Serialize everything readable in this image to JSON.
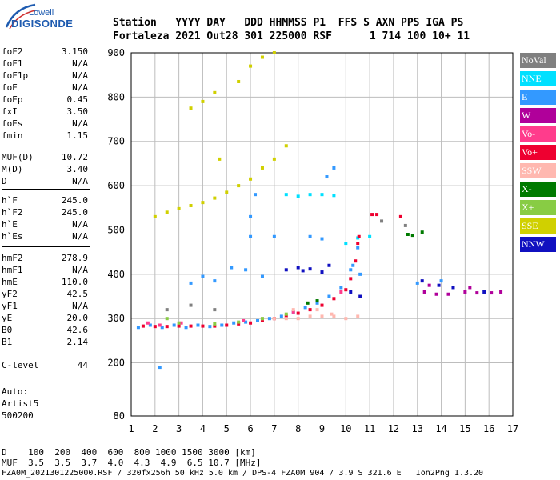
{
  "logo": {
    "top": "Lowell",
    "main": "DIGISONDE"
  },
  "header": {
    "row1": "Station   YYYY DAY   DDD HHMMSS P1  FFS S AXN PPS IGA PS",
    "row2": "Fortaleza 2021 Out28 301 225000 RSF      1 714 100 10+ 11"
  },
  "params": [
    {
      "label": "foF2",
      "value": "3.150"
    },
    {
      "label": "foF1",
      "value": "N/A"
    },
    {
      "label": "foF1p",
      "value": "N/A"
    },
    {
      "label": "foE",
      "value": "N/A"
    },
    {
      "label": "foEp",
      "value": "0.45"
    },
    {
      "label": "fxI",
      "value": "3.50"
    },
    {
      "label": "foEs",
      "value": "N/A"
    },
    {
      "label": "fmin",
      "value": "1.15"
    },
    {
      "label": "MUF(D)",
      "value": "10.72"
    },
    {
      "label": "M(D)",
      "value": "3.40"
    },
    {
      "label": "D",
      "value": "N/A"
    },
    {
      "label": "h`F",
      "value": "245.0"
    },
    {
      "label": "h`F2",
      "value": "245.0"
    },
    {
      "label": "h`E",
      "value": "N/A"
    },
    {
      "label": "h`Es",
      "value": "N/A"
    },
    {
      "label": "hmF2",
      "value": "278.9"
    },
    {
      "label": "hmF1",
      "value": "N/A"
    },
    {
      "label": "hmE",
      "value": "110.0"
    },
    {
      "label": "yF2",
      "value": "42.5"
    },
    {
      "label": "yF1",
      "value": "N/A"
    },
    {
      "label": "yE",
      "value": "20.0"
    },
    {
      "label": "B0",
      "value": "42.6"
    },
    {
      "label": "B1",
      "value": "2.14"
    },
    {
      "label": "C-level",
      "value": "44"
    }
  ],
  "auto": [
    "Auto:",
    "Artist5",
    "500200"
  ],
  "legend": [
    {
      "label": "NoVal",
      "color": "#808080",
      "text": "#ffffff"
    },
    {
      "label": "NNE",
      "color": "#00e0ff",
      "text": "#ffffff"
    },
    {
      "label": "E",
      "color": "#3399ff",
      "text": "#ffffff"
    },
    {
      "label": "W",
      "color": "#b0009a",
      "text": "#ffffff"
    },
    {
      "label": "Vo-",
      "color": "#ff3c8c",
      "text": "#ffffff"
    },
    {
      "label": "Vo+",
      "color": "#ee0030",
      "text": "#ffffff"
    },
    {
      "label": "SSW",
      "color": "#ffb8b0",
      "text": "#ffffff"
    },
    {
      "label": "X-",
      "color": "#007a00",
      "text": "#ffffff"
    },
    {
      "label": "X+",
      "color": "#88cc44",
      "text": "#ffffff"
    },
    {
      "label": "SSE",
      "color": "#d0d000",
      "text": "#ffffff"
    },
    {
      "label": "NNW",
      "color": "#1010c0",
      "text": "#ffffff"
    }
  ],
  "footer": {
    "row1": "D    100  200  400  600  800 1000 1500 3000 [km]",
    "row2": "MUF  3.5  3.5  3.7  4.0  4.3  4.9  6.5 10.7 [MHz]",
    "row3": "FZA0M_2021301225000.RSF / 320fx256h 50 kHz 5.0 km / DPS-4 FZA0M 904 / 3.9 S 321.6 E   Ion2Png 1.3.20"
  },
  "chart_data": {
    "type": "scatter",
    "xlabel": "",
    "ylabel": "",
    "xlim": [
      1,
      17
    ],
    "ylim": [
      80,
      900
    ],
    "x_ticks": [
      1,
      2,
      3,
      4,
      5,
      6,
      7,
      8,
      9,
      10,
      11,
      12,
      13,
      14,
      15,
      16,
      17
    ],
    "y_ticks": [
      80,
      200,
      300,
      400,
      500,
      600,
      700,
      800,
      900
    ],
    "grid": true,
    "series": [
      {
        "name": "E",
        "points": [
          [
            1.3,
            280
          ],
          [
            1.8,
            285
          ],
          [
            2.3,
            280
          ],
          [
            2.8,
            285
          ],
          [
            3.3,
            280
          ],
          [
            3.8,
            285
          ],
          [
            4.3,
            282
          ],
          [
            4.8,
            285
          ],
          [
            5.3,
            290
          ],
          [
            5.8,
            292
          ],
          [
            6.3,
            295
          ],
          [
            6.8,
            300
          ],
          [
            7.3,
            305
          ],
          [
            7.8,
            315
          ],
          [
            8.3,
            325
          ],
          [
            8.8,
            335
          ],
          [
            9.3,
            350
          ],
          [
            9.8,
            370
          ],
          [
            10.2,
            410
          ],
          [
            10.5,
            460
          ],
          [
            3.5,
            380
          ],
          [
            4.0,
            395
          ],
          [
            4.5,
            385
          ],
          [
            5.2,
            415
          ],
          [
            5.8,
            410
          ],
          [
            6.5,
            395
          ],
          [
            6.0,
            485
          ],
          [
            6.0,
            530
          ],
          [
            7.0,
            485
          ],
          [
            8.5,
            485
          ],
          [
            9.0,
            480
          ],
          [
            10.3,
            420
          ],
          [
            10.6,
            400
          ],
          [
            13.0,
            380
          ],
          [
            14.0,
            385
          ],
          [
            6.2,
            580
          ],
          [
            2.2,
            190
          ],
          [
            9.2,
            620
          ],
          [
            9.5,
            640
          ]
        ]
      },
      {
        "name": "NNE",
        "points": [
          [
            7.5,
            580
          ],
          [
            8.0,
            576
          ],
          [
            8.5,
            580
          ],
          [
            9.0,
            580
          ],
          [
            9.5,
            578
          ],
          [
            10.5,
            482
          ],
          [
            11.0,
            485
          ],
          [
            10.0,
            470
          ]
        ]
      },
      {
        "name": "Vo+",
        "points": [
          [
            1.5,
            283
          ],
          [
            2.0,
            282
          ],
          [
            2.5,
            282
          ],
          [
            3.0,
            283
          ],
          [
            3.5,
            283
          ],
          [
            4.0,
            283
          ],
          [
            4.5,
            283
          ],
          [
            5.0,
            285
          ],
          [
            5.5,
            288
          ],
          [
            6.0,
            290
          ],
          [
            6.5,
            295
          ],
          [
            7.0,
            300
          ],
          [
            7.5,
            305
          ],
          [
            8.0,
            312
          ],
          [
            8.5,
            320
          ],
          [
            9.0,
            330
          ],
          [
            9.5,
            345
          ],
          [
            10.0,
            365
          ],
          [
            10.2,
            390
          ],
          [
            10.4,
            430
          ],
          [
            10.5,
            470
          ],
          [
            10.55,
            485
          ],
          [
            11.3,
            535
          ],
          [
            11.1,
            535
          ],
          [
            12.3,
            530
          ]
        ]
      },
      {
        "name": "Vo-",
        "points": [
          [
            1.7,
            290
          ],
          [
            2.2,
            285
          ],
          [
            3.1,
            290
          ],
          [
            5.7,
            295
          ],
          [
            7.8,
            315
          ],
          [
            9.8,
            360
          ]
        ]
      },
      {
        "name": "SSW",
        "points": [
          [
            6.5,
            300
          ],
          [
            7.0,
            300
          ],
          [
            7.5,
            300
          ],
          [
            8.0,
            300
          ],
          [
            8.5,
            305
          ],
          [
            9.0,
            305
          ],
          [
            9.5,
            305
          ],
          [
            10.0,
            300
          ],
          [
            10.5,
            305
          ],
          [
            7.8,
            320
          ],
          [
            8.8,
            320
          ],
          [
            9.4,
            310
          ]
        ]
      },
      {
        "name": "W",
        "points": [
          [
            13.3,
            360
          ],
          [
            13.8,
            355
          ],
          [
            14.3,
            355
          ],
          [
            15.0,
            360
          ],
          [
            15.5,
            358
          ],
          [
            16.1,
            358
          ],
          [
            16.5,
            360
          ],
          [
            15.2,
            370
          ],
          [
            13.5,
            375
          ]
        ]
      },
      {
        "name": "NNW",
        "points": [
          [
            7.5,
            410
          ],
          [
            8.0,
            415
          ],
          [
            8.5,
            412
          ],
          [
            9.0,
            405
          ],
          [
            9.3,
            420
          ],
          [
            8.2,
            408
          ],
          [
            13.2,
            385
          ],
          [
            13.9,
            375
          ],
          [
            14.5,
            370
          ],
          [
            15.8,
            360
          ],
          [
            10.2,
            360
          ],
          [
            10.6,
            350
          ]
        ]
      },
      {
        "name": "X-",
        "points": [
          [
            12.6,
            490
          ],
          [
            13.2,
            495
          ],
          [
            12.8,
            488
          ],
          [
            8.4,
            335
          ],
          [
            8.8,
            340
          ]
        ]
      },
      {
        "name": "X+",
        "points": [
          [
            2.5,
            300
          ],
          [
            3.0,
            290
          ],
          [
            4.5,
            288
          ],
          [
            5.5,
            292
          ],
          [
            6.5,
            300
          ],
          [
            7.5,
            310
          ]
        ]
      },
      {
        "name": "SSE",
        "points": [
          [
            2.0,
            530
          ],
          [
            2.5,
            540
          ],
          [
            3.0,
            548
          ],
          [
            3.5,
            555
          ],
          [
            4.0,
            562
          ],
          [
            4.5,
            572
          ],
          [
            5.0,
            585
          ],
          [
            5.5,
            600
          ],
          [
            6.0,
            615
          ],
          [
            6.5,
            640
          ],
          [
            7.0,
            660
          ],
          [
            7.5,
            690
          ],
          [
            3.5,
            775
          ],
          [
            4.0,
            790
          ],
          [
            4.5,
            810
          ],
          [
            5.5,
            835
          ],
          [
            6.0,
            870
          ],
          [
            6.5,
            890
          ],
          [
            7.0,
            900
          ],
          [
            4.7,
            660
          ]
        ]
      },
      {
        "name": "NoVal",
        "points": [
          [
            2.5,
            320
          ],
          [
            3.5,
            330
          ],
          [
            4.5,
            320
          ],
          [
            11.5,
            520
          ],
          [
            12.5,
            510
          ]
        ]
      }
    ]
  }
}
